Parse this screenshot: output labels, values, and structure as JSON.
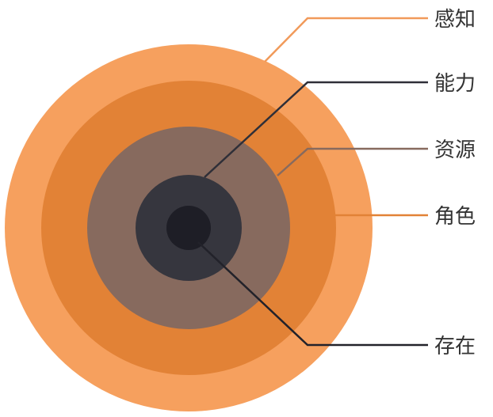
{
  "diagram": {
    "layers": [
      {
        "label": "感知",
        "color": "#f6a05e",
        "line_color": "#f19a5a"
      },
      {
        "label": "能力",
        "color": "#e28236",
        "line_color": "#2f2f38"
      },
      {
        "label": "资源",
        "color": "#876a5e",
        "line_color": "#876a5e"
      },
      {
        "label": "角色",
        "color": "#36363e",
        "line_color": "#e28236"
      },
      {
        "label": "存在",
        "color": "#1e1e26",
        "line_color": "#22222a"
      }
    ]
  }
}
